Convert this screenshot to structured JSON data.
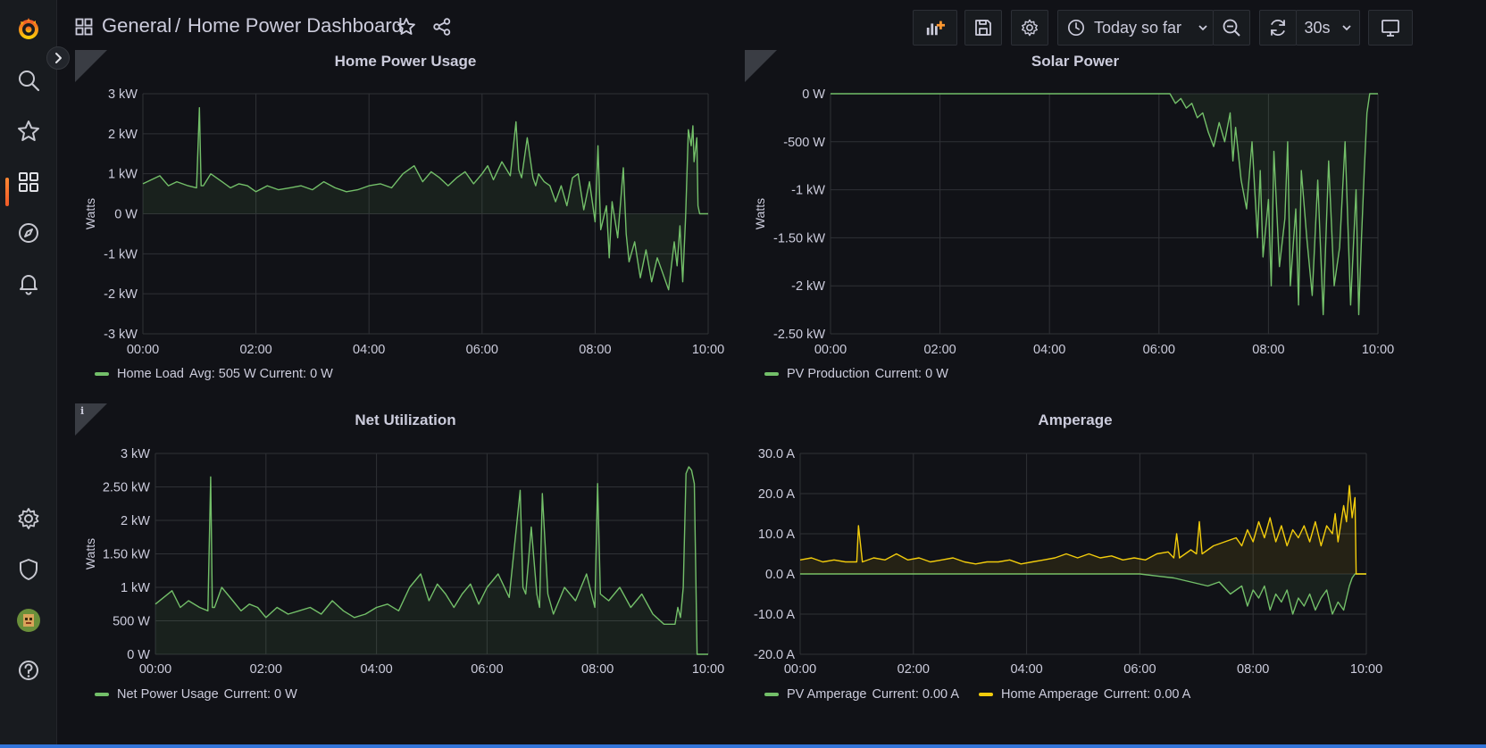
{
  "app": {
    "breadcrumb_folder": "General",
    "breadcrumb_separator": "/",
    "dashboard_title": "Home Power Dashboard"
  },
  "sidebar": {
    "items": [
      {
        "name": "grafana-logo-icon"
      },
      {
        "name": "search-icon"
      },
      {
        "name": "starred-icon"
      },
      {
        "name": "dashboards-icon",
        "active": true
      },
      {
        "name": "explore-compass-icon"
      },
      {
        "name": "alerting-bell-icon"
      },
      {
        "name": "configuration-gear-icon"
      },
      {
        "name": "server-admin-shield-icon"
      },
      {
        "name": "user-avatar"
      },
      {
        "name": "help-icon"
      }
    ]
  },
  "toolbar": {
    "time_range_label": "Today so far",
    "refresh_interval": "30s"
  },
  "colors": {
    "green": "#73bf69",
    "yellow": "#f2cc0c",
    "accent": "#f05a28",
    "background": "#111217",
    "grid": "#2f3136"
  },
  "panels": {
    "home_power": {
      "title": "Home Power Usage",
      "legend": [
        {
          "label": "Home Load",
          "stats": "Avg: 505 W  Current: 0 W",
          "color": "#73bf69"
        }
      ]
    },
    "solar_power": {
      "title": "Solar Power",
      "legend": [
        {
          "label": "PV Production",
          "stats": "Current: 0 W",
          "color": "#73bf69"
        }
      ]
    },
    "net_utilization": {
      "title": "Net Utilization",
      "legend": [
        {
          "label": "Net Power Usage",
          "stats": "Current: 0 W",
          "color": "#73bf69"
        }
      ]
    },
    "amperage": {
      "title": "Amperage",
      "legend": [
        {
          "label": "PV Amperage",
          "stats": "Current: 0.00 A",
          "color": "#73bf69"
        },
        {
          "label": "Home Amperage",
          "stats": "Current: 0.00 A",
          "color": "#f2cc0c"
        }
      ]
    }
  },
  "chart_data": [
    {
      "type": "line",
      "title": "Home Power Usage",
      "ylabel": "Watts",
      "x_ticks": [
        "00:00",
        "02:00",
        "04:00",
        "06:00",
        "08:00",
        "10:00"
      ],
      "y_ticks": [
        "3 kW",
        "2 kW",
        "1 kW",
        "0 W",
        "-1 kW",
        "-2 kW",
        "-3 kW"
      ],
      "y_tick_values": [
        3000,
        2000,
        1000,
        0,
        -1000,
        -2000,
        -3000
      ],
      "ylim": [
        -3000,
        3000
      ],
      "xlim_hours": [
        0,
        10
      ],
      "series": [
        {
          "name": "Home Load",
          "color": "#73bf69",
          "x": [
            0,
            0.15,
            0.3,
            0.45,
            0.6,
            0.8,
            0.95,
            1.0,
            1.03,
            1.07,
            1.2,
            1.4,
            1.55,
            1.7,
            1.85,
            2.0,
            2.2,
            2.4,
            2.6,
            2.8,
            3.0,
            3.2,
            3.4,
            3.6,
            3.8,
            4.0,
            4.2,
            4.4,
            4.6,
            4.8,
            4.95,
            5.1,
            5.25,
            5.4,
            5.55,
            5.7,
            5.85,
            6.0,
            6.1,
            6.2,
            6.35,
            6.5,
            6.6,
            6.65,
            6.7,
            6.8,
            6.9,
            6.95,
            7.0,
            7.1,
            7.2,
            7.3,
            7.4,
            7.5,
            7.6,
            7.7,
            7.8,
            7.9,
            8.0,
            8.05,
            8.1,
            8.2,
            8.25,
            8.3,
            8.4,
            8.5,
            8.55,
            8.6,
            8.7,
            8.8,
            8.9,
            9.0,
            9.1,
            9.2,
            9.3,
            9.4,
            9.45,
            9.5,
            9.55,
            9.6,
            9.65,
            9.7,
            9.73,
            9.75,
            9.8,
            9.82,
            9.85,
            9.9,
            10.0
          ],
          "y": [
            750,
            850,
            950,
            700,
            800,
            700,
            650,
            2650,
            700,
            700,
            1000,
            800,
            650,
            750,
            700,
            550,
            700,
            600,
            650,
            700,
            600,
            800,
            650,
            550,
            600,
            700,
            750,
            650,
            1000,
            1200,
            800,
            1050,
            900,
            700,
            900,
            1050,
            750,
            1000,
            1200,
            850,
            1300,
            950,
            2300,
            1100,
            900,
            1900,
            900,
            700,
            1000,
            800,
            700,
            300,
            700,
            200,
            900,
            1000,
            100,
            800,
            -200,
            1700,
            -400,
            200,
            -1100,
            300,
            -600,
            1150,
            -500,
            -1200,
            -700,
            -1600,
            -900,
            -1700,
            -1100,
            -1500,
            -1900,
            -700,
            -1300,
            -300,
            -1700,
            -100,
            2100,
            1700,
            2200,
            1300,
            1900,
            200,
            0,
            0,
            0
          ]
        }
      ]
    },
    {
      "type": "line",
      "title": "Solar Power",
      "ylabel": "Watts",
      "x_ticks": [
        "00:00",
        "02:00",
        "04:00",
        "06:00",
        "08:00",
        "10:00"
      ],
      "y_ticks": [
        "0 W",
        "-500 W",
        "-1 kW",
        "-1.50 kW",
        "-2 kW",
        "-2.50 kW"
      ],
      "y_tick_values": [
        0,
        -500,
        -1000,
        -1500,
        -2000,
        -2500
      ],
      "ylim": [
        -2500,
        0
      ],
      "xlim_hours": [
        0,
        10
      ],
      "series": [
        {
          "name": "PV Production",
          "color": "#73bf69",
          "x": [
            0,
            6.0,
            6.2,
            6.3,
            6.4,
            6.5,
            6.6,
            6.7,
            6.8,
            6.9,
            7.0,
            7.1,
            7.2,
            7.3,
            7.35,
            7.4,
            7.5,
            7.6,
            7.7,
            7.8,
            7.85,
            7.9,
            8.0,
            8.05,
            8.1,
            8.2,
            8.3,
            8.35,
            8.4,
            8.5,
            8.55,
            8.6,
            8.7,
            8.8,
            8.9,
            9.0,
            9.1,
            9.2,
            9.3,
            9.4,
            9.5,
            9.6,
            9.65,
            9.7,
            9.75,
            9.8,
            9.85,
            10.0
          ],
          "y": [
            0,
            0,
            0,
            -100,
            -50,
            -150,
            -100,
            -250,
            -200,
            -400,
            -550,
            -300,
            -500,
            -200,
            -700,
            -350,
            -900,
            -1200,
            -500,
            -1500,
            -800,
            -1700,
            -1100,
            -2000,
            -600,
            -1800,
            -1300,
            -500,
            -2000,
            -1200,
            -2200,
            -800,
            -1500,
            -2100,
            -900,
            -2300,
            -700,
            -2000,
            -1600,
            -500,
            -2200,
            -1000,
            -2300,
            -1500,
            -800,
            -200,
            0,
            0
          ]
        }
      ]
    },
    {
      "type": "line",
      "title": "Net Utilization",
      "ylabel": "Watts",
      "x_ticks": [
        "00:00",
        "02:00",
        "04:00",
        "06:00",
        "08:00",
        "10:00"
      ],
      "y_ticks": [
        "3 kW",
        "2.50 kW",
        "2 kW",
        "1.50 kW",
        "1 kW",
        "500 W",
        "0 W"
      ],
      "y_tick_values": [
        3000,
        2500,
        2000,
        1500,
        1000,
        500,
        0
      ],
      "ylim": [
        0,
        3000
      ],
      "xlim_hours": [
        0,
        10
      ],
      "series": [
        {
          "name": "Net Power Usage",
          "color": "#73bf69",
          "x": [
            0,
            0.15,
            0.3,
            0.45,
            0.6,
            0.8,
            0.95,
            1.0,
            1.03,
            1.07,
            1.2,
            1.4,
            1.55,
            1.7,
            1.85,
            2.0,
            2.2,
            2.4,
            2.6,
            2.8,
            3.0,
            3.2,
            3.4,
            3.6,
            3.8,
            4.0,
            4.2,
            4.4,
            4.6,
            4.8,
            4.95,
            5.1,
            5.25,
            5.4,
            5.55,
            5.7,
            5.85,
            6.0,
            6.2,
            6.4,
            6.6,
            6.65,
            6.7,
            6.8,
            6.9,
            6.95,
            7.0,
            7.1,
            7.2,
            7.4,
            7.6,
            7.8,
            7.95,
            8.0,
            8.05,
            8.2,
            8.4,
            8.6,
            8.8,
            9.0,
            9.2,
            9.4,
            9.45,
            9.5,
            9.55,
            9.6,
            9.65,
            9.7,
            9.75,
            9.8,
            9.85,
            9.9,
            10.0
          ],
          "y": [
            750,
            850,
            950,
            700,
            800,
            700,
            650,
            2650,
            700,
            700,
            1000,
            800,
            650,
            750,
            700,
            550,
            700,
            600,
            650,
            700,
            600,
            800,
            650,
            550,
            600,
            700,
            750,
            650,
            1000,
            1200,
            800,
            1050,
            900,
            700,
            900,
            1050,
            750,
            1000,
            1200,
            850,
            2450,
            1000,
            900,
            1900,
            900,
            700,
            2400,
            900,
            600,
            1000,
            800,
            1200,
            700,
            2550,
            900,
            800,
            1000,
            700,
            900,
            600,
            450,
            450,
            700,
            550,
            1000,
            2700,
            2800,
            2750,
            2550,
            0,
            0,
            0,
            0
          ]
        }
      ]
    },
    {
      "type": "line",
      "title": "Amperage",
      "x_ticks": [
        "00:00",
        "02:00",
        "04:00",
        "06:00",
        "08:00",
        "10:00"
      ],
      "y_ticks": [
        "30.0 A",
        "20.0 A",
        "10.0 A",
        "0.0 A",
        "-10.0 A",
        "-20.0 A"
      ],
      "y_tick_values": [
        30,
        20,
        10,
        0,
        -10,
        -20
      ],
      "ylim": [
        -20,
        30
      ],
      "xlim_hours": [
        0,
        10
      ],
      "series": [
        {
          "name": "PV Amperage",
          "color": "#73bf69",
          "x": [
            0,
            6.0,
            6.3,
            6.6,
            6.9,
            7.2,
            7.4,
            7.6,
            7.8,
            7.9,
            8.0,
            8.1,
            8.2,
            8.3,
            8.4,
            8.5,
            8.6,
            8.7,
            8.8,
            8.9,
            9.0,
            9.1,
            9.2,
            9.3,
            9.4,
            9.5,
            9.6,
            9.7,
            9.75,
            9.8,
            10.0
          ],
          "y": [
            0,
            0,
            -0.5,
            -1,
            -2,
            -3,
            -2,
            -5,
            -3,
            -8,
            -4,
            -6,
            -3,
            -9,
            -5,
            -7,
            -4,
            -10,
            -6,
            -8,
            -5,
            -9,
            -6,
            -4,
            -10,
            -7,
            -9,
            -3,
            -1,
            0,
            0
          ]
        },
        {
          "name": "Home Amperage",
          "color": "#f2cc0c",
          "x": [
            0,
            0.2,
            0.4,
            0.6,
            0.8,
            1.0,
            1.03,
            1.1,
            1.3,
            1.5,
            1.7,
            1.9,
            2.1,
            2.3,
            2.5,
            2.7,
            2.9,
            3.1,
            3.3,
            3.5,
            3.7,
            3.9,
            4.1,
            4.3,
            4.5,
            4.7,
            4.9,
            5.1,
            5.3,
            5.5,
            5.7,
            5.9,
            6.1,
            6.3,
            6.5,
            6.6,
            6.65,
            6.7,
            6.9,
            7.0,
            7.05,
            7.1,
            7.3,
            7.5,
            7.7,
            7.8,
            7.9,
            8.0,
            8.1,
            8.2,
            8.3,
            8.4,
            8.5,
            8.6,
            8.7,
            8.8,
            8.9,
            9.0,
            9.1,
            9.2,
            9.3,
            9.4,
            9.45,
            9.5,
            9.6,
            9.65,
            9.7,
            9.75,
            9.8,
            9.82,
            10.0
          ],
          "y": [
            3.5,
            4,
            3,
            3.5,
            3,
            3,
            12,
            3,
            4,
            3.5,
            5,
            3.5,
            4,
            3,
            3.5,
            4,
            3,
            2.5,
            3,
            3,
            3.5,
            2.5,
            3,
            3.5,
            4,
            5,
            4,
            5,
            4,
            4.5,
            3.5,
            4,
            3.5,
            5,
            5.5,
            4,
            10,
            4,
            6,
            5,
            13,
            5,
            7,
            8,
            9,
            7,
            11,
            8,
            13,
            9,
            14,
            8,
            12,
            7,
            11,
            9,
            12,
            8,
            13,
            7,
            12,
            10,
            15,
            8,
            17,
            13,
            22,
            14,
            19,
            0,
            0
          ]
        }
      ]
    }
  ]
}
